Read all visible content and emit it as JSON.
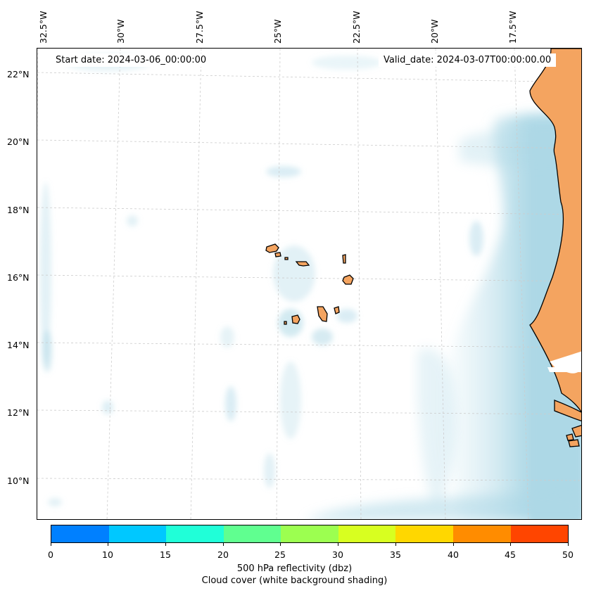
{
  "map": {
    "start_label": "Start date: 2024-03-06_00:00:00",
    "valid_label": "Valid_date: 2024-03-07T00:00:00.00",
    "lon_labels": [
      "32.5°W",
      "30°W",
      "27.5°W",
      "25°W",
      "22.5°W",
      "20°W",
      "17.5°W"
    ],
    "lat_labels": [
      "22°N",
      "20°N",
      "18°N",
      "16°N",
      "14°N",
      "12°N",
      "10°N"
    ],
    "colors": {
      "cloud": "#add8e6",
      "land": "#f4a460",
      "coast": "#000000",
      "grid": "#cccccc"
    }
  },
  "colorbar": {
    "ticks": [
      "0",
      "10",
      "15",
      "20",
      "25",
      "30",
      "35",
      "40",
      "45",
      "50"
    ],
    "colors": [
      "#0080ff",
      "#00c8ff",
      "#20ffd8",
      "#60ff90",
      "#9cff50",
      "#d8ff20",
      "#ffd700",
      "#ff8c00",
      "#ff4500"
    ],
    "title": "500 hPa reflectivity (dbz)",
    "subtitle": "Cloud cover (white background shading)"
  }
}
